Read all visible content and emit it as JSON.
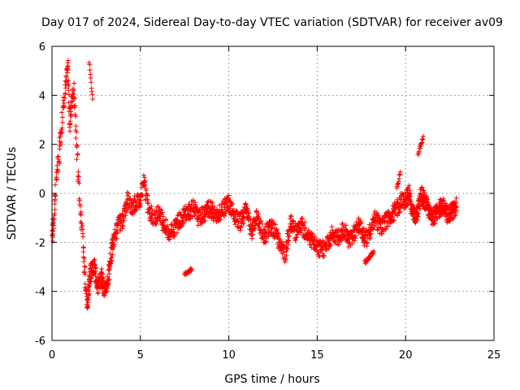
{
  "chart_data": {
    "type": "scatter",
    "title": "Day 017 of 2024, Sidereal Day-to-day VTEC variation (SDTVAR) for receiver av09",
    "xlabel": "GPS time / hours",
    "ylabel": "SDTVAR / TECUs",
    "xlim": [
      0,
      25
    ],
    "ylim": [
      -6,
      6
    ],
    "xticks": [
      0,
      5,
      10,
      15,
      20,
      25
    ],
    "yticks": [
      -6,
      -4,
      -2,
      0,
      2,
      4,
      6
    ],
    "grid": true,
    "marker": "+",
    "color": "#ff0000",
    "series": [
      {
        "name": "av09",
        "trend": {
          "x": [
            0.0,
            0.1,
            0.2,
            0.4,
            0.6,
            0.8,
            0.9,
            1.0,
            1.1,
            1.25,
            1.4,
            1.6,
            1.8,
            2.0,
            2.1,
            2.2,
            2.4,
            2.6,
            2.8,
            3.0,
            3.2,
            3.4,
            3.6,
            3.8,
            4.0,
            4.3,
            4.5,
            4.7,
            5.0,
            5.2,
            5.5,
            5.8,
            6.0,
            6.3,
            6.6,
            7.0,
            7.3,
            7.6,
            8.0,
            8.3,
            8.6,
            9.0,
            9.3,
            9.6,
            10.0,
            10.3,
            10.6,
            11.0,
            11.3,
            11.6,
            12.0,
            12.3,
            12.6,
            12.9,
            13.2,
            13.5,
            13.8,
            14.1,
            14.4,
            14.7,
            15.0,
            15.3,
            15.6,
            15.9,
            16.2,
            16.5,
            16.8,
            17.1,
            17.4,
            17.7,
            18.0,
            18.3,
            18.6,
            18.9,
            19.2,
            19.5,
            19.8,
            20.0,
            20.2,
            20.4,
            20.6,
            20.9,
            21.2,
            21.5,
            21.8,
            22.1,
            22.4,
            22.7,
            22.9
          ],
          "y": [
            -1.8,
            -1.2,
            0.2,
            1.5,
            3.2,
            4.5,
            5.3,
            2.8,
            3.6,
            4.2,
            2.0,
            -0.6,
            -2.5,
            -4.6,
            -3.6,
            -3.2,
            -3.0,
            -3.8,
            -3.4,
            -4.0,
            -3.4,
            -2.2,
            -1.6,
            -1.2,
            -1.2,
            -0.2,
            -0.6,
            -0.4,
            -0.2,
            0.5,
            -0.8,
            -1.0,
            -0.8,
            -1.2,
            -1.6,
            -1.4,
            -1.0,
            -0.8,
            -0.6,
            -1.0,
            -0.8,
            -0.6,
            -1.0,
            -0.7,
            -0.4,
            -0.9,
            -1.2,
            -0.7,
            -1.6,
            -1.0,
            -1.8,
            -1.3,
            -1.5,
            -2.1,
            -2.5,
            -1.2,
            -1.6,
            -1.3,
            -1.6,
            -1.9,
            -2.2,
            -2.3,
            -2.0,
            -1.6,
            -1.8,
            -1.5,
            -1.9,
            -1.6,
            -1.2,
            -1.9,
            -1.6,
            -1.0,
            -1.4,
            -1.1,
            -0.9,
            -0.6,
            -0.3,
            -0.3,
            0.0,
            -0.8,
            -1.0,
            0.0,
            -0.5,
            -1.0,
            -0.7,
            -0.5,
            -0.9,
            -0.7,
            -0.5
          ],
          "spread": 0.35
        },
        "extra_segments": [
          {
            "x": [
              7.5,
              7.9
            ],
            "y": [
              -3.3,
              -3.1
            ]
          },
          {
            "x": [
              20.7,
              21.0
            ],
            "y": [
              1.6,
              2.3
            ]
          },
          {
            "x": [
              17.7,
              18.2
            ],
            "y": [
              -2.8,
              -2.4
            ]
          },
          {
            "x": [
              2.1,
              2.3
            ],
            "y": [
              5.4,
              3.8
            ]
          },
          {
            "x": [
              19.5,
              19.7
            ],
            "y": [
              0.2,
              0.8
            ]
          }
        ]
      }
    ]
  }
}
